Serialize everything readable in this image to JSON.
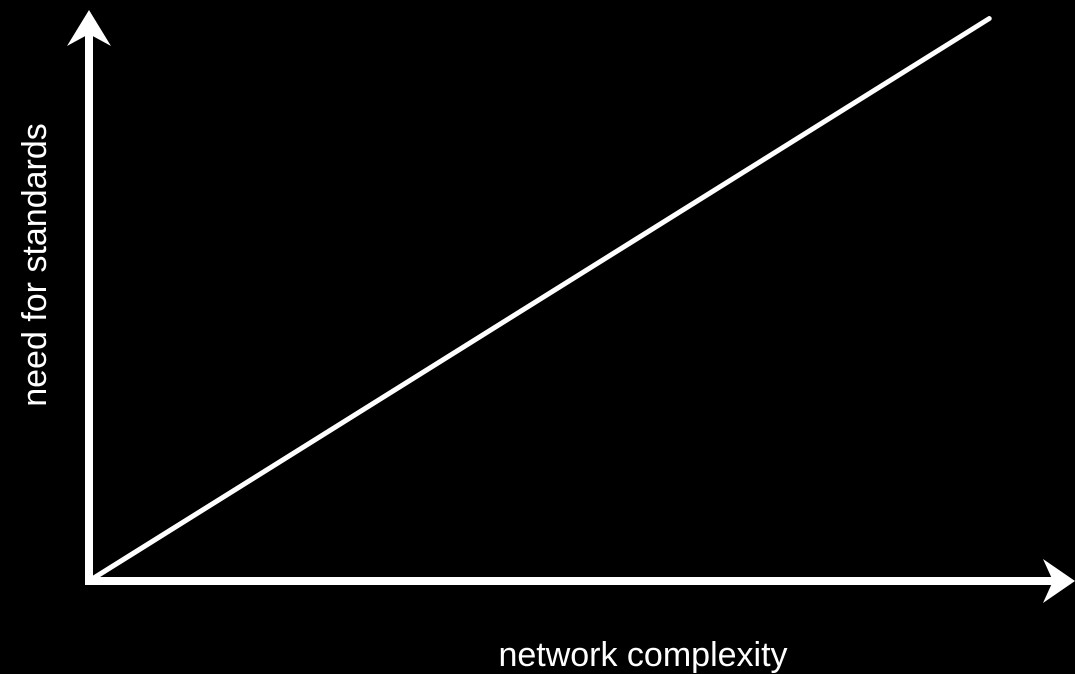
{
  "chart_data": {
    "type": "line",
    "title": "",
    "xlabel": "network complexity",
    "ylabel": "need for standards",
    "xlim": [
      0,
      1
    ],
    "ylim": [
      0,
      1
    ],
    "ticks": false,
    "grid": false,
    "legend": false,
    "series": [
      {
        "values": [
          {
            "x": 0.0,
            "y": 0.0
          },
          {
            "x": 0.93,
            "y": 0.985
          }
        ]
      }
    ]
  },
  "colors": {
    "background": "#000000",
    "foreground": "#ffffff"
  }
}
